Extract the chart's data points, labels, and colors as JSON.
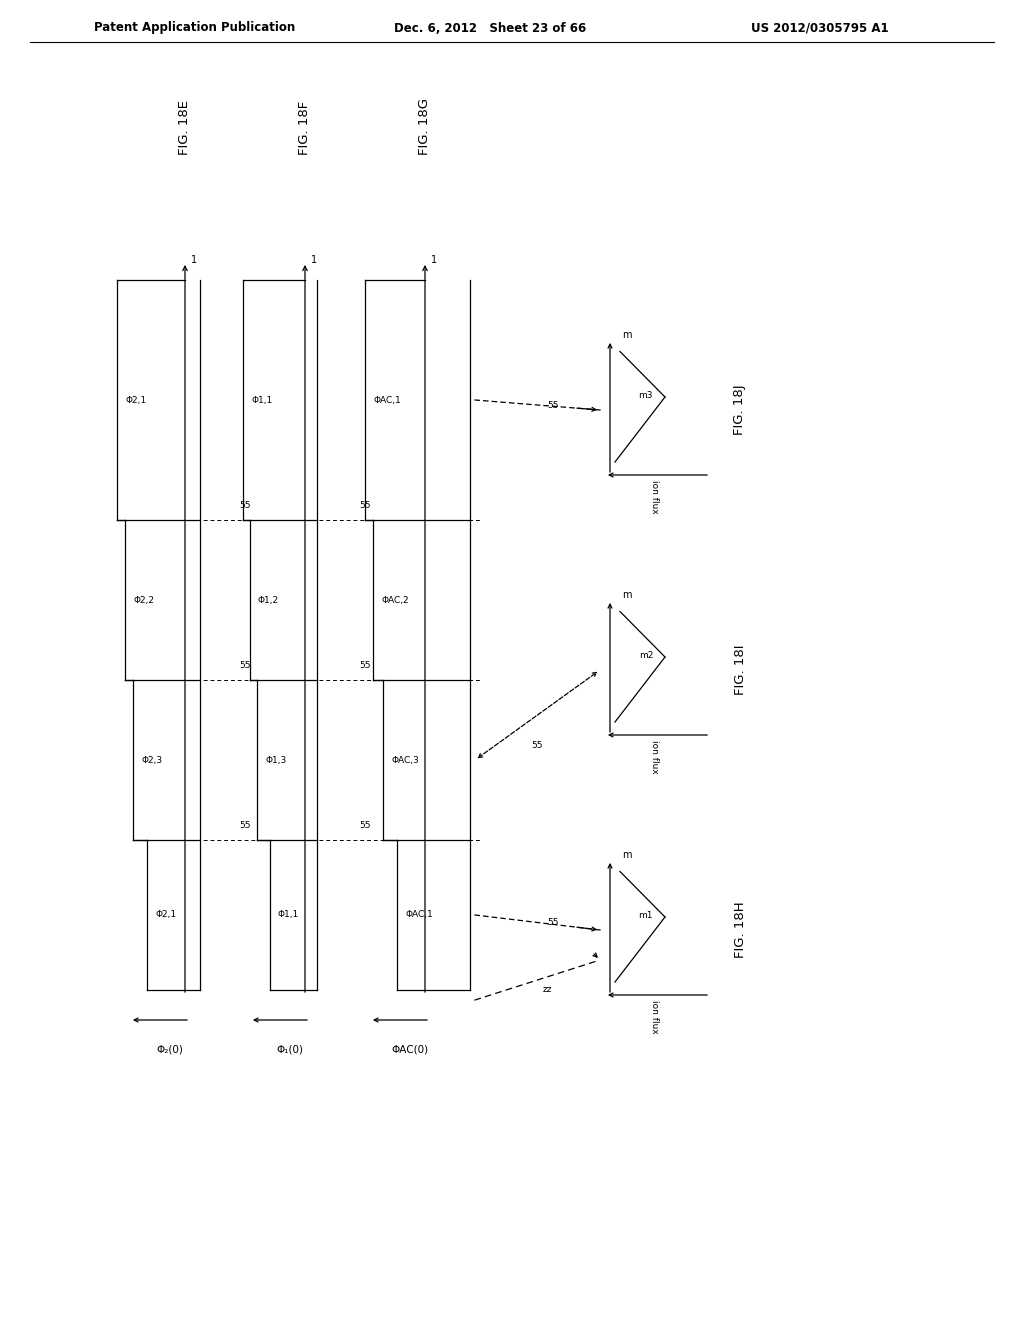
{
  "bg_color": "#ffffff",
  "header_left": "Patent Application Publication",
  "header_center": "Dec. 6, 2012   Sheet 23 of 66",
  "header_right": "US 2012/0305795 A1",
  "fig_labels_top": [
    "FIG. 18E",
    "FIG. 18F",
    "FIG. 18G"
  ],
  "bottom_labels": [
    "Φ₂(0)",
    "Φ₁(0)",
    "ΦAC(0)"
  ],
  "col1_labels": [
    "Φ2,1",
    "Φ2,3",
    "Φ2,2",
    "Φ2,1"
  ],
  "col2_labels": [
    "Φ1,1",
    "Φ1,3",
    "Φ1,2",
    "Φ1,1"
  ],
  "col3_labels": [
    "ΦAC,1",
    "ΦAC,3",
    "ΦAC,2",
    "ΦAC,1"
  ],
  "side_figs": [
    "FIG. 18H",
    "FIG. 18I",
    "FIG. 18J"
  ],
  "side_mass_labels": [
    "m1",
    "m2",
    "m3"
  ],
  "ss_label": "55",
  "zz_label": "zz"
}
